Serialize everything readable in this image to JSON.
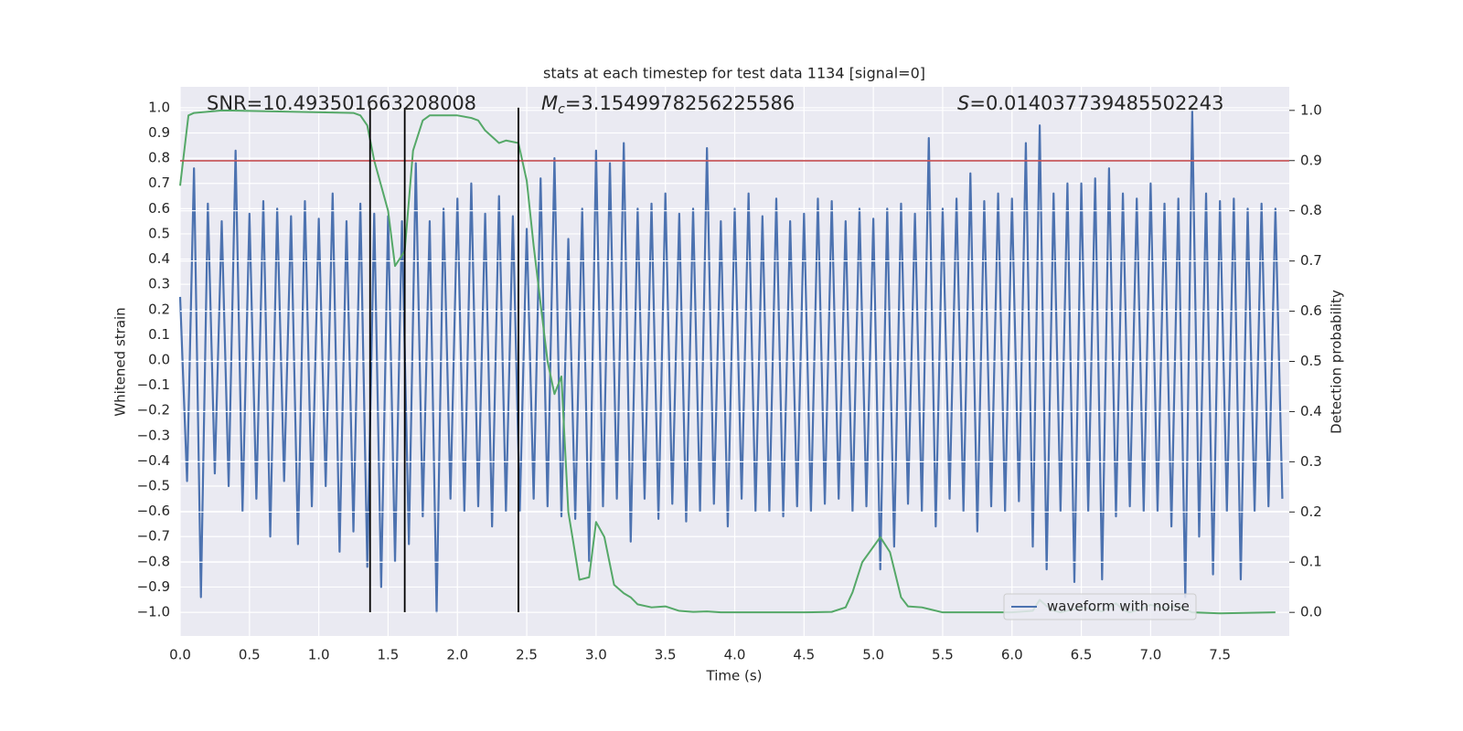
{
  "chart_data": {
    "type": "line",
    "title": "stats at each timestep for test data 1134 [signal=0]",
    "xlabel": "Time (s)",
    "ylabel": "Whitened strain",
    "y2label": "Detection probability",
    "annotations": [
      {
        "text": "SNR=10.493501663208008"
      },
      {
        "symbol": "M",
        "subscript": "c",
        "text": "=3.1549978256225586"
      },
      {
        "symbol": "S",
        "text": "=0.014037739485502243"
      }
    ],
    "series": [
      {
        "name": "waveform with noise",
        "color": "#4c72b0",
        "x": [
          0,
          0.05,
          0.1,
          0.15,
          0.2,
          0.25,
          0.3,
          0.35,
          0.4,
          0.45,
          0.5,
          0.55,
          0.6,
          0.65,
          0.7,
          0.75,
          0.8,
          0.85,
          0.9,
          0.95,
          1,
          1.05,
          1.1,
          1.15,
          1.2,
          1.25,
          1.3,
          1.35,
          1.4,
          1.45,
          1.5,
          1.55,
          1.6,
          1.65,
          1.7,
          1.75,
          1.8,
          1.85,
          1.9,
          1.95,
          2,
          2.05,
          2.1,
          2.15,
          2.2,
          2.25,
          2.3,
          2.35,
          2.4,
          2.45,
          2.5,
          2.55,
          2.6,
          2.65,
          2.7,
          2.75,
          2.8,
          2.85,
          2.9,
          2.95,
          3,
          3.05,
          3.1,
          3.15,
          3.2,
          3.25,
          3.3,
          3.35,
          3.4,
          3.45,
          3.5,
          3.55,
          3.6,
          3.65,
          3.7,
          3.75,
          3.8,
          3.85,
          3.9,
          3.95,
          4,
          4.05,
          4.1,
          4.15,
          4.2,
          4.25,
          4.3,
          4.35,
          4.4,
          4.45,
          4.5,
          4.55,
          4.6,
          4.65,
          4.7,
          4.75,
          4.8,
          4.85,
          4.9,
          4.95,
          5,
          5.05,
          5.1,
          5.15,
          5.2,
          5.25,
          5.3,
          5.35,
          5.4,
          5.45,
          5.5,
          5.55,
          5.6,
          5.65,
          5.7,
          5.75,
          5.8,
          5.85,
          5.9,
          5.95,
          6,
          6.05,
          6.1,
          6.15,
          6.2,
          6.25,
          6.3,
          6.35,
          6.4,
          6.45,
          6.5,
          6.55,
          6.6,
          6.65,
          6.7,
          6.75,
          6.8,
          6.85,
          6.9,
          6.95,
          7,
          7.05,
          7.1,
          7.15,
          7.2,
          7.25,
          7.3,
          7.35,
          7.4,
          7.45,
          7.5,
          7.55,
          7.6,
          7.65,
          7.7,
          7.75,
          7.8,
          7.85,
          7.9,
          7.95
        ],
        "values": [
          0.25,
          -0.48,
          0.76,
          -0.94,
          0.62,
          -0.45,
          0.55,
          -0.5,
          0.83,
          -0.6,
          0.58,
          -0.55,
          0.63,
          -0.7,
          0.6,
          -0.48,
          0.57,
          -0.73,
          0.63,
          -0.58,
          0.56,
          -0.5,
          0.66,
          -0.76,
          0.55,
          -0.68,
          0.62,
          -0.82,
          0.58,
          -0.9,
          0.57,
          -0.8,
          0.55,
          -0.73,
          0.78,
          -0.62,
          0.55,
          -1.0,
          0.6,
          -0.55,
          0.64,
          -0.6,
          0.7,
          -0.58,
          0.58,
          -0.66,
          0.65,
          -0.6,
          0.57,
          -0.6,
          0.52,
          -0.55,
          0.72,
          -0.58,
          0.8,
          -0.62,
          0.48,
          -0.63,
          0.6,
          -0.8,
          0.83,
          -0.58,
          0.78,
          -0.55,
          0.86,
          -0.72,
          0.6,
          -0.55,
          0.62,
          -0.63,
          0.66,
          -0.57,
          0.58,
          -0.64,
          0.6,
          -0.6,
          0.84,
          -0.57,
          0.55,
          -0.66,
          0.6,
          -0.55,
          0.66,
          -0.6,
          0.57,
          -0.6,
          0.64,
          -0.62,
          0.55,
          -0.58,
          0.58,
          -0.6,
          0.64,
          -0.57,
          0.63,
          -0.55,
          0.55,
          -0.6,
          0.6,
          -0.58,
          0.56,
          -0.83,
          0.6,
          -0.74,
          0.62,
          -0.57,
          0.58,
          -0.6,
          0.88,
          -0.66,
          0.6,
          -0.55,
          0.64,
          -0.6,
          0.74,
          -0.68,
          0.63,
          -0.58,
          0.66,
          -0.6,
          0.64,
          -0.56,
          0.86,
          -0.74,
          0.93,
          -0.83,
          0.66,
          -0.6,
          0.7,
          -0.88,
          0.7,
          -0.6,
          0.72,
          -0.87,
          0.76,
          -0.62,
          0.66,
          -0.58,
          0.64,
          -0.6,
          0.7,
          -0.6,
          0.62,
          -0.66,
          0.64,
          -0.94,
          0.99,
          -0.7,
          0.66,
          -0.85,
          0.63,
          -0.6,
          0.64,
          -0.87,
          0.6,
          -0.6,
          0.62,
          -0.58,
          0.6,
          -0.55
        ]
      },
      {
        "color": "#55a868",
        "axis": "y2",
        "x": [
          0,
          0.06,
          0.1,
          0.3,
          1.25,
          1.3,
          1.35,
          1.4,
          1.45,
          1.5,
          1.55,
          1.62,
          1.68,
          1.75,
          1.8,
          2.0,
          2.1,
          2.15,
          2.2,
          2.3,
          2.35,
          2.44,
          2.5,
          2.55,
          2.65,
          2.7,
          2.75,
          2.8,
          2.88,
          2.95,
          3.0,
          3.06,
          3.13,
          3.2,
          3.25,
          3.3,
          3.4,
          3.5,
          3.6,
          3.7,
          3.8,
          3.9,
          4.0,
          4.2,
          4.5,
          4.7,
          4.8,
          4.85,
          4.92,
          5.05,
          5.12,
          5.2,
          5.25,
          5.35,
          5.5,
          5.8,
          6.0,
          6.15,
          6.2,
          6.28,
          6.35,
          6.5,
          6.6,
          6.65,
          6.75,
          6.8,
          6.85,
          6.92,
          7.0,
          7.1,
          7.2,
          7.3,
          7.5,
          7.9
        ],
        "values": [
          0.85,
          0.99,
          0.995,
          1.0,
          0.995,
          0.99,
          0.97,
          0.9,
          0.85,
          0.8,
          0.69,
          0.72,
          0.92,
          0.98,
          0.99,
          0.99,
          0.985,
          0.98,
          0.96,
          0.935,
          0.94,
          0.935,
          0.86,
          0.73,
          0.5,
          0.435,
          0.47,
          0.2,
          0.065,
          0.07,
          0.18,
          0.15,
          0.055,
          0.038,
          0.03,
          0.016,
          0.01,
          0.012,
          0.003,
          0.001,
          0.002,
          0.0,
          0.0,
          0.0,
          0.0,
          0.001,
          0.01,
          0.04,
          0.1,
          0.15,
          0.12,
          0.03,
          0.012,
          0.01,
          0.0,
          0.0,
          0.0,
          0.003,
          0.025,
          0.005,
          0.0,
          0.01,
          0.005,
          0.002,
          0.018,
          0.005,
          0.0,
          0.006,
          0.015,
          0.008,
          0.012,
          0.0,
          -0.002,
          0.0
        ]
      }
    ],
    "vlines": [
      {
        "x": 1.37,
        "ymin": -1.0,
        "ymax": 1.0
      },
      {
        "x": 1.62,
        "ymin": -1.0,
        "ymax": 1.0
      },
      {
        "x": 2.44,
        "ymin": -1.0,
        "ymax": 1.0
      }
    ],
    "vline_color": "#000000",
    "hline": {
      "y": 0.79,
      "color": "#c44e52"
    },
    "xlim": [
      0,
      8.0
    ],
    "ylim": [
      -1.094,
      1.083
    ],
    "y2lim": [
      -0.047,
      1.047
    ],
    "xticks": [
      {
        "value": 0,
        "label": "0.0"
      },
      {
        "value": 0.5,
        "label": "0.5"
      },
      {
        "value": 1,
        "label": "1.0"
      },
      {
        "value": 1.5,
        "label": "1.5"
      },
      {
        "value": 2,
        "label": "2.0"
      },
      {
        "value": 2.5,
        "label": "2.5"
      },
      {
        "value": 3,
        "label": "3.0"
      },
      {
        "value": 3.5,
        "label": "3.5"
      },
      {
        "value": 4,
        "label": "4.0"
      },
      {
        "value": 4.5,
        "label": "4.5"
      },
      {
        "value": 5,
        "label": "5.0"
      },
      {
        "value": 5.5,
        "label": "5.5"
      },
      {
        "value": 6,
        "label": "6.0"
      },
      {
        "value": 6.5,
        "label": "6.5"
      },
      {
        "value": 7,
        "label": "7.0"
      },
      {
        "value": 7.5,
        "label": "7.5"
      }
    ],
    "yticks": [
      {
        "value": 1,
        "label": "1.0"
      },
      {
        "value": 0.9,
        "label": "0.9"
      },
      {
        "value": 0.8,
        "label": "0.8"
      },
      {
        "value": 0.7,
        "label": "0.7"
      },
      {
        "value": 0.6,
        "label": "0.6"
      },
      {
        "value": 0.5,
        "label": "0.5"
      },
      {
        "value": 0.4,
        "label": "0.4"
      },
      {
        "value": 0.3,
        "label": "0.3"
      },
      {
        "value": 0.2,
        "label": "0.2"
      },
      {
        "value": 0.1,
        "label": "0.1"
      },
      {
        "value": 0,
        "label": "0.0"
      },
      {
        "value": -0.1,
        "label": "−0.1"
      },
      {
        "value": -0.2,
        "label": "−0.2"
      },
      {
        "value": -0.3,
        "label": "−0.3"
      },
      {
        "value": -0.4,
        "label": "−0.4"
      },
      {
        "value": -0.5,
        "label": "−0.5"
      },
      {
        "value": -0.6,
        "label": "−0.6"
      },
      {
        "value": -0.7,
        "label": "−0.7"
      },
      {
        "value": -0.8,
        "label": "−0.8"
      },
      {
        "value": -0.9,
        "label": "−0.9"
      },
      {
        "value": -1,
        "label": "−1.0"
      }
    ],
    "y2ticks": [
      {
        "value": 0,
        "label": "0.0"
      },
      {
        "value": 0.1,
        "label": "0.1"
      },
      {
        "value": 0.2,
        "label": "0.2"
      },
      {
        "value": 0.3,
        "label": "0.3"
      },
      {
        "value": 0.4,
        "label": "0.4"
      },
      {
        "value": 0.5,
        "label": "0.5"
      },
      {
        "value": 0.6,
        "label": "0.6"
      },
      {
        "value": 0.7,
        "label": "0.7"
      },
      {
        "value": 0.8,
        "label": "0.8"
      },
      {
        "value": 0.9,
        "label": "0.9"
      },
      {
        "value": 1,
        "label": "1.0"
      }
    ],
    "grid": true,
    "y2grid": true,
    "legend": "lower right"
  }
}
